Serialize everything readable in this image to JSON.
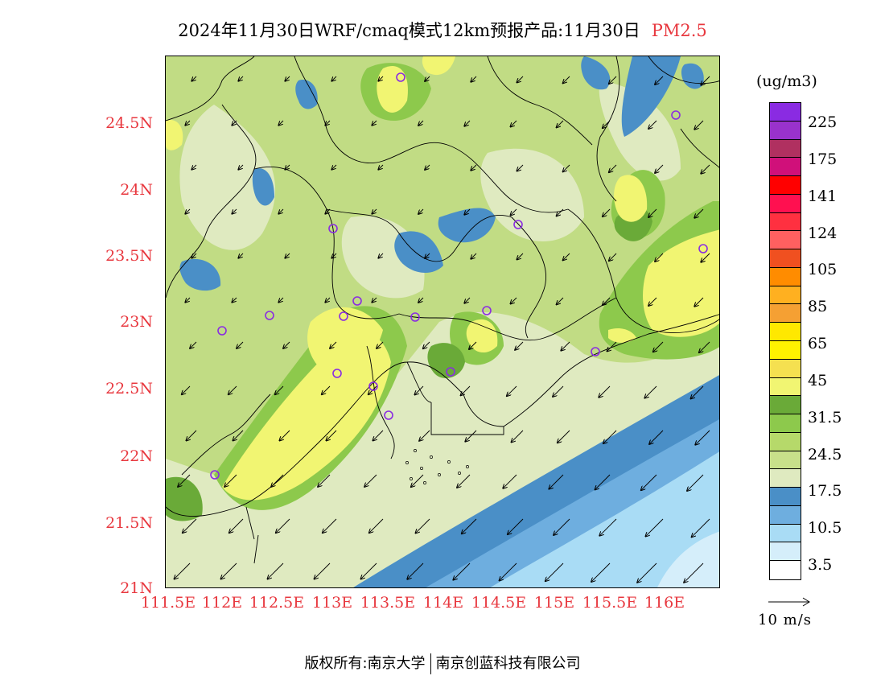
{
  "header": {
    "title": "2024年11月30日WRF/cmaq模式12km预报产品:11月30日",
    "pollutant": "PM2.5"
  },
  "map": {
    "lat_labels": [
      "24.5N",
      "24N",
      "23.5N",
      "23N",
      "22.5N",
      "22N",
      "21.5N",
      "21N"
    ],
    "lon_labels": [
      "111.5E",
      "112E",
      "112.5E",
      "113E",
      "113.5E",
      "114E",
      "114.5E",
      "115E",
      "115.5E",
      "116E"
    ],
    "colors": {
      "base": "#c1dc84",
      "light": "#dfeac0",
      "yellow": "#f1f572",
      "green_mid": "#8dc94c",
      "green_dark": "#6aaa38",
      "blue_dark": "#4a8fc7",
      "blue_mid": "#6eaedf",
      "blue_light": "#a9dcf5",
      "blue_pale": "#d5eefa",
      "station": "#8a2be2"
    }
  },
  "legend": {
    "unit": "(ug/m3)",
    "colors": [
      "#8a2be2",
      "#9932cc",
      "#b03060",
      "#d0107a",
      "#ff0000",
      "#ff1050",
      "#ff3040",
      "#ff6060",
      "#f05020",
      "#ff8c00",
      "#ffb020",
      "#f5a033",
      "#ffe800",
      "#fff200",
      "#f5e050",
      "#f1f572",
      "#6aaa38",
      "#8dc94c",
      "#b6d96a",
      "#c8e08a",
      "#dfeac0",
      "#4a8fc7",
      "#6eaedf",
      "#a9dcf5",
      "#d5eefa",
      "#ffffff"
    ],
    "labels": [
      "225",
      "175",
      "141",
      "124",
      "105",
      "85",
      "65",
      "45",
      "31.5",
      "24.5",
      "17.5",
      "10.5",
      "3.5"
    ]
  },
  "wind_reference": {
    "label": "10  m/s"
  },
  "footer": {
    "left": "版权所有:南京大学",
    "right": "南京创蓝科技有限公司"
  }
}
